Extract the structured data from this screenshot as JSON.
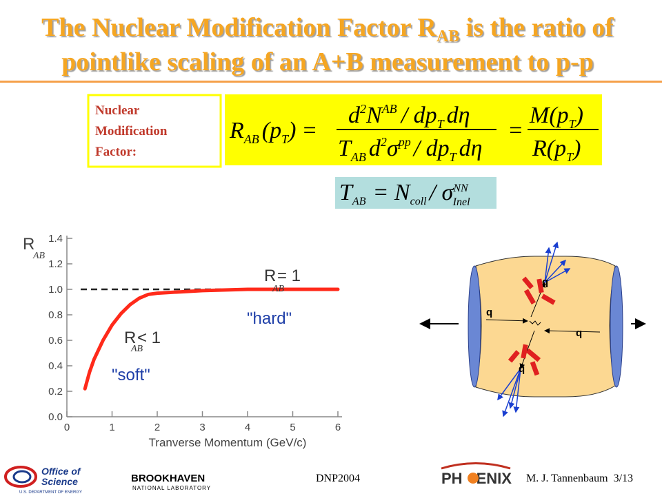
{
  "title": {
    "line1": [
      "The Nuclear Modification Factor R",
      "AB",
      " is the ratio of"
    ],
    "line2": "pointlike scaling of an A+B measurement to p-p"
  },
  "label": [
    "Nuclear",
    "Modification",
    "Factor:"
  ],
  "formula1": {
    "lhs": [
      "R",
      "AB",
      "(p",
      "T",
      ")",
      "="
    ],
    "numerator": [
      "d",
      "2",
      "N",
      "AB",
      "/ dp",
      "T",
      "dη"
    ],
    "denominator": [
      "T",
      "AB",
      "d",
      "2",
      "σ",
      "pp",
      "/ dp",
      "T",
      "dη"
    ],
    "eq": "=",
    "ratio_num": [
      "M(p",
      "T",
      ")"
    ],
    "ratio_den": [
      "R(p",
      "T",
      ")"
    ]
  },
  "formula2": [
    "T",
    "AB",
    "= N",
    "coll",
    "/ σ",
    "NN",
    "Inel"
  ],
  "chart_data": {
    "type": "line",
    "ylabel": [
      "R",
      "AB"
    ],
    "xlabel": "Tranverse Momentum (GeV/c)",
    "x": [
      0.4,
      0.5,
      0.6,
      0.8,
      1.0,
      1.2,
      1.4,
      1.6,
      1.8,
      2.0,
      2.5,
      3.0,
      4.0,
      5.0,
      6.0
    ],
    "values": [
      0.22,
      0.35,
      0.45,
      0.6,
      0.72,
      0.81,
      0.88,
      0.93,
      0.96,
      0.97,
      0.98,
      0.99,
      1.0,
      1.0,
      1.0
    ],
    "color": "#ff2a1a",
    "reference_line": 1,
    "xlim": [
      0,
      6
    ],
    "ylim": [
      0,
      1.4
    ],
    "xticks": [
      0,
      1,
      2,
      3,
      4,
      5,
      6
    ],
    "yticks": [
      {
        "value": 0,
        "label": "0.0"
      },
      0.2,
      0.4,
      0.6,
      0.8,
      {
        "value": 1,
        "label": "1.0"
      },
      1.2,
      1.4
    ],
    "annotations": {
      "hard_eq": [
        "R",
        "AB",
        "= 1"
      ],
      "hard": "\"hard\"",
      "soft_eq": [
        "R",
        "AB",
        "< 1"
      ],
      "soft": "\"soft\""
    },
    "annotation_color": "#1f3fa8"
  },
  "diagram": {
    "quarks": [
      "q",
      "q",
      "q",
      "q"
    ]
  },
  "footer": {
    "conference": "DNP2004",
    "author": "M. J. Tannenbaum  3/13",
    "doe": [
      "Office of",
      "Science",
      "U.S. DEPARTMENT OF ENERGY"
    ],
    "bnl": [
      "BROOKHAVEN",
      "NATIONAL LABORATORY"
    ],
    "phenix": [
      "PH",
      "ENIX"
    ]
  }
}
